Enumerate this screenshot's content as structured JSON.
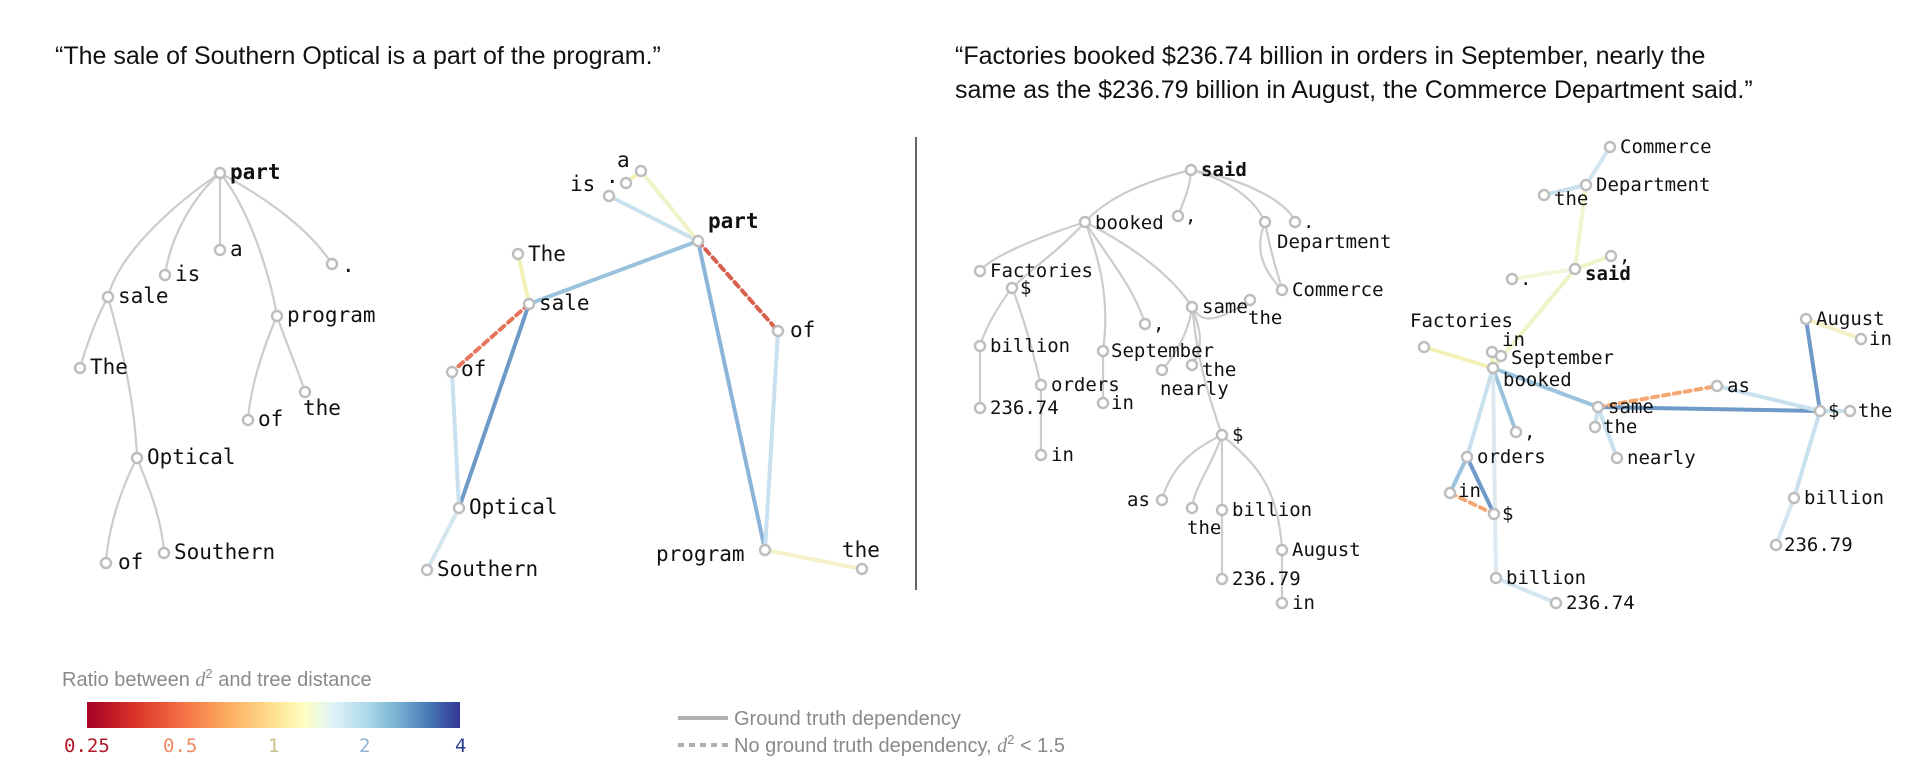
{
  "sentences": {
    "left": "“The sale of Southern Optical is a part of the program.”",
    "right_line1": "“Factories booked $236.74 billion in orders in September, nearly the",
    "right_line2": "same as the $236.79 billion in August, the Commerce Department said.”"
  },
  "words": {
    "part": "part",
    "is": "is",
    "a": "a",
    "dot": ".",
    "sale": "sale",
    "program": "program",
    "The": "The",
    "of": "of",
    "the": "the",
    "Optical": "Optical",
    "Southern": "Southern",
    "said": "said",
    "booked": "booked",
    "comma": ",",
    "Department": "Department",
    "Commerce": "Commerce",
    "Factories": "Factories",
    "dollar": "$",
    "billion": "billion",
    "orders": "orders",
    "v23674": "236.74",
    "in": "in",
    "September": "September",
    "same": "same",
    "nearly": "nearly",
    "as": "as",
    "August": "August",
    "v23679": "236.79"
  },
  "legend": {
    "title": "Ratio between d² and tree distance",
    "title_pre": "Ratio between ",
    "title_d": "d",
    "title_sup": "2",
    "title_post": " and tree distance",
    "ticks": [
      "0.25",
      "0.5",
      "1",
      "2",
      "4"
    ],
    "tick_colors": [
      "#b2182b",
      "#ef8a62",
      "#c9c08a",
      "#8fb6d6",
      "#2c3e8c"
    ],
    "solid_label": "Ground truth dependency",
    "dashed_pre": "No ground truth dependency, ",
    "dashed_d": "d",
    "dashed_sup": "2",
    "dashed_post": " < 1.5"
  },
  "colors": {
    "dark_red": "#b2182b",
    "orange": "#e5745a",
    "light_orange": "#f3a873",
    "yellow": "#f4f1b8",
    "light_blue": "#c9e0ee",
    "mid_blue": "#9cc3de",
    "blue": "#6e9ac8",
    "dark_blue": "#313695",
    "gray": "#cccccc"
  }
}
